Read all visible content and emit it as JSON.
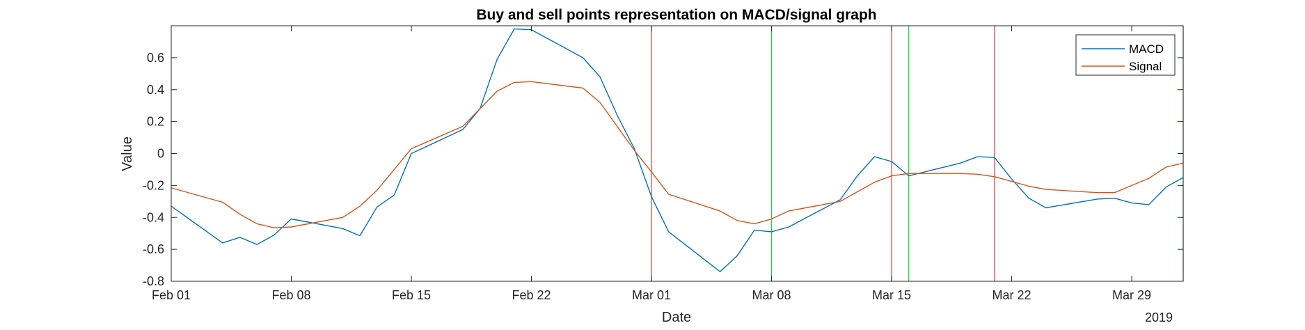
{
  "chart_data": {
    "type": "line",
    "title": "Buy and sell points representation on MACD/signal graph",
    "xlabel": "Date",
    "ylabel": "Value",
    "year_label": "2019",
    "x_range": [
      "2019-02-01",
      "2019-04-01"
    ],
    "ylim": [
      -0.8,
      0.8
    ],
    "x_ticks": [
      {
        "date": "2019-02-01",
        "label": "Feb 01"
      },
      {
        "date": "2019-02-08",
        "label": "Feb 08"
      },
      {
        "date": "2019-02-15",
        "label": "Feb 15"
      },
      {
        "date": "2019-02-22",
        "label": "Feb 22"
      },
      {
        "date": "2019-03-01",
        "label": "Mar 01"
      },
      {
        "date": "2019-03-08",
        "label": "Mar 08"
      },
      {
        "date": "2019-03-15",
        "label": "Mar 15"
      },
      {
        "date": "2019-03-22",
        "label": "Mar 22"
      },
      {
        "date": "2019-03-29",
        "label": "Mar 29"
      }
    ],
    "y_ticks": [
      {
        "value": -0.8,
        "label": "-0.8"
      },
      {
        "value": -0.6,
        "label": "-0.6"
      },
      {
        "value": -0.4,
        "label": "-0.4"
      },
      {
        "value": -0.2,
        "label": "-0.2"
      },
      {
        "value": 0,
        "label": "0"
      },
      {
        "value": 0.2,
        "label": "0.2"
      },
      {
        "value": 0.4,
        "label": "0.4"
      },
      {
        "value": 0.6,
        "label": "0.6"
      }
    ],
    "legend_position": "top-right",
    "grid": false,
    "series": [
      {
        "name": "MACD",
        "color": "#0072BD",
        "points": [
          [
            "2019-02-01",
            -0.33
          ],
          [
            "2019-02-04",
            -0.56
          ],
          [
            "2019-02-05",
            -0.525
          ],
          [
            "2019-02-06",
            -0.57
          ],
          [
            "2019-02-07",
            -0.51
          ],
          [
            "2019-02-08",
            -0.41
          ],
          [
            "2019-02-11",
            -0.47
          ],
          [
            "2019-02-12",
            -0.515
          ],
          [
            "2019-02-13",
            -0.335
          ],
          [
            "2019-02-14",
            -0.26
          ],
          [
            "2019-02-15",
            0.0
          ],
          [
            "2019-02-18",
            0.15
          ],
          [
            "2019-02-19",
            0.28
          ],
          [
            "2019-02-20",
            0.59
          ],
          [
            "2019-02-21",
            0.78
          ],
          [
            "2019-02-22",
            0.775
          ],
          [
            "2019-02-25",
            0.6
          ],
          [
            "2019-02-26",
            0.48
          ],
          [
            "2019-02-27",
            0.24
          ],
          [
            "2019-02-28",
            0.03
          ],
          [
            "2019-03-01",
            -0.27
          ],
          [
            "2019-03-02",
            -0.49
          ],
          [
            "2019-03-05",
            -0.74
          ],
          [
            "2019-03-06",
            -0.64
          ],
          [
            "2019-03-07",
            -0.48
          ],
          [
            "2019-03-08",
            -0.49
          ],
          [
            "2019-03-09",
            -0.46
          ],
          [
            "2019-03-12",
            -0.29
          ],
          [
            "2019-03-13",
            -0.14
          ],
          [
            "2019-03-14",
            -0.02
          ],
          [
            "2019-03-15",
            -0.05
          ],
          [
            "2019-03-16",
            -0.14
          ],
          [
            "2019-03-19",
            -0.06
          ],
          [
            "2019-03-20",
            -0.02
          ],
          [
            "2019-03-21",
            -0.025
          ],
          [
            "2019-03-22",
            -0.16
          ],
          [
            "2019-03-23",
            -0.28
          ],
          [
            "2019-03-24",
            -0.34
          ],
          [
            "2019-03-27",
            -0.285
          ],
          [
            "2019-03-28",
            -0.28
          ],
          [
            "2019-03-29",
            -0.31
          ],
          [
            "2019-03-30",
            -0.32
          ],
          [
            "2019-03-31",
            -0.21
          ],
          [
            "2019-04-03",
            -0.03
          ]
        ]
      },
      {
        "name": "Signal",
        "color": "#D95319",
        "points": [
          [
            "2019-02-01",
            -0.215
          ],
          [
            "2019-02-04",
            -0.305
          ],
          [
            "2019-02-05",
            -0.38
          ],
          [
            "2019-02-06",
            -0.44
          ],
          [
            "2019-02-07",
            -0.465
          ],
          [
            "2019-02-08",
            -0.46
          ],
          [
            "2019-02-11",
            -0.4
          ],
          [
            "2019-02-12",
            -0.33
          ],
          [
            "2019-02-13",
            -0.23
          ],
          [
            "2019-02-14",
            -0.1
          ],
          [
            "2019-02-15",
            0.03
          ],
          [
            "2019-02-18",
            0.17
          ],
          [
            "2019-02-19",
            0.28
          ],
          [
            "2019-02-20",
            0.39
          ],
          [
            "2019-02-21",
            0.445
          ],
          [
            "2019-02-22",
            0.45
          ],
          [
            "2019-02-25",
            0.41
          ],
          [
            "2019-02-26",
            0.32
          ],
          [
            "2019-02-27",
            0.17
          ],
          [
            "2019-02-28",
            0.02
          ],
          [
            "2019-03-01",
            -0.115
          ],
          [
            "2019-03-02",
            -0.255
          ],
          [
            "2019-03-05",
            -0.36
          ],
          [
            "2019-03-06",
            -0.42
          ],
          [
            "2019-03-07",
            -0.44
          ],
          [
            "2019-03-08",
            -0.41
          ],
          [
            "2019-03-09",
            -0.36
          ],
          [
            "2019-03-12",
            -0.3
          ],
          [
            "2019-03-13",
            -0.24
          ],
          [
            "2019-03-14",
            -0.18
          ],
          [
            "2019-03-15",
            -0.14
          ],
          [
            "2019-03-16",
            -0.125
          ],
          [
            "2019-03-19",
            -0.125
          ],
          [
            "2019-03-20",
            -0.13
          ],
          [
            "2019-03-21",
            -0.145
          ],
          [
            "2019-03-22",
            -0.175
          ],
          [
            "2019-03-23",
            -0.205
          ],
          [
            "2019-03-24",
            -0.225
          ],
          [
            "2019-03-27",
            -0.245
          ],
          [
            "2019-03-28",
            -0.245
          ],
          [
            "2019-03-29",
            -0.2
          ],
          [
            "2019-03-30",
            -0.155
          ],
          [
            "2019-03-31",
            -0.085
          ],
          [
            "2019-04-03",
            -0.01
          ]
        ]
      }
    ],
    "vertical_markers": [
      {
        "date": "2019-02-29",
        "kind": "sell",
        "color": "#E74C3C"
      },
      {
        "date": "2019-03-08",
        "kind": "buy",
        "color": "#2ECC40"
      },
      {
        "date": "2019-03-15",
        "kind": "sell",
        "color": "#E74C3C"
      },
      {
        "date": "2019-03-16",
        "kind": "buy",
        "color": "#2ECC40"
      },
      {
        "date": "2019-03-21",
        "kind": "sell",
        "color": "#E74C3C"
      },
      {
        "date": "2019-04-01",
        "kind": "buy",
        "color": "#2ECC40"
      }
    ]
  }
}
